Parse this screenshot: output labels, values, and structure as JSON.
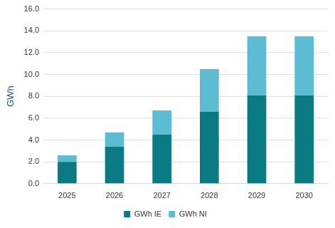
{
  "chart_data": {
    "type": "bar",
    "stacked": true,
    "grid": true,
    "legend": "bottom",
    "y_label": "GWh",
    "categories": [
      "2025",
      "2026",
      "2027",
      "2028",
      "2029",
      "2030"
    ],
    "series": [
      {
        "name": "GWh IE",
        "color": "#0b7b83",
        "values": [
          2.0,
          3.4,
          4.5,
          6.6,
          8.1,
          8.1
        ]
      },
      {
        "name": "GWh NI",
        "color": "#5bbcd2",
        "values": [
          0.6,
          1.3,
          2.2,
          3.9,
          5.4,
          5.4
        ]
      }
    ],
    "ylim": [
      0,
      16
    ],
    "yticks": [
      {
        "value": 0,
        "label": "0.0"
      },
      {
        "value": 2,
        "label": "2.0"
      },
      {
        "value": 4,
        "label": "4.0"
      },
      {
        "value": 6,
        "label": "6.0"
      },
      {
        "value": 8,
        "label": "8.0"
      },
      {
        "value": 10,
        "label": "10.0"
      },
      {
        "value": 12,
        "label": "12.0"
      },
      {
        "value": 14,
        "label": "14.0"
      },
      {
        "value": 16,
        "label": "16.0"
      }
    ]
  }
}
